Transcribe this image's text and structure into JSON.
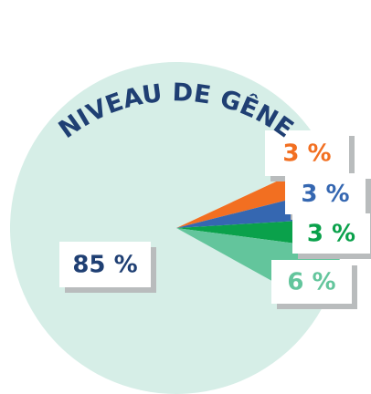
{
  "chart_data": {
    "type": "pie",
    "title": "NIVEAU DE GÊNE",
    "values": [
      85,
      3,
      3,
      3,
      6
    ],
    "value_labels": [
      "85 %",
      "3 %",
      "3 %",
      "3 %",
      "6 %"
    ],
    "colors": [
      "#d6eee7",
      "#f26f21",
      "#3567b1",
      "#0aa14b",
      "#63c59c"
    ],
    "label_colors": [
      "#1f3f73",
      "#f26f21",
      "#3567b1",
      "#0aa14b",
      "#63c59c"
    ]
  }
}
